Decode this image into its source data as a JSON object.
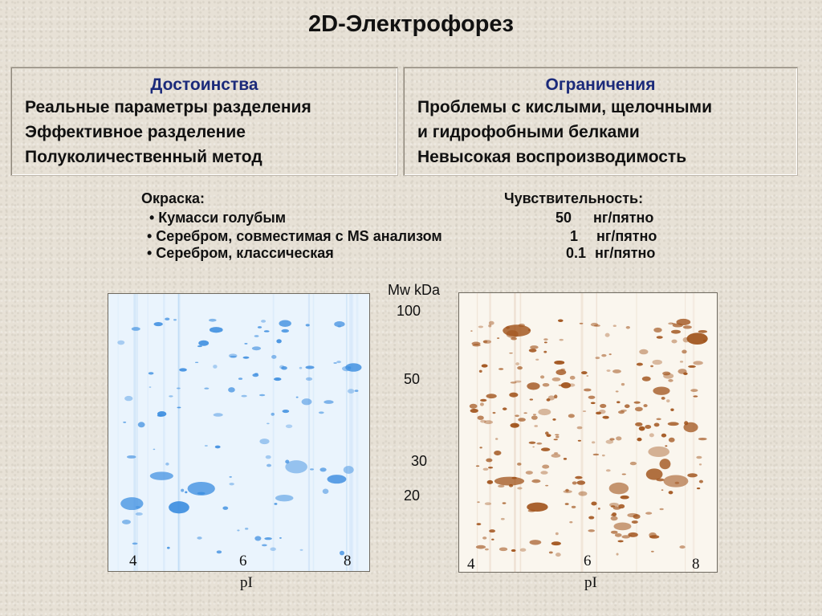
{
  "title": "2D-Электрофорез",
  "advantages": {
    "heading": "Достоинства",
    "items": [
      "Реальные параметры разделения",
      "Эффективное разделение",
      "Полуколичественный метод"
    ]
  },
  "limitations": {
    "heading": "Ограничения",
    "items": [
      "Проблемы с кислыми, щелочными",
      "и гидрофобными белками",
      "Невысокая воспроизводимость"
    ]
  },
  "staining": {
    "label": "Окраска:",
    "sensitivity_label": "Чувствительность:",
    "rows": [
      {
        "method": "•  Кумасси голубым",
        "value": "50",
        "unit": "нг/пятно"
      },
      {
        "method": "•  Серебром, совместимая с MS анализом",
        "value": "1",
        "unit": "нг/пятно"
      },
      {
        "method": "•  Серебром, классическая",
        "value": "0.1",
        "unit": "нг/пятно"
      }
    ]
  },
  "mw_axis": {
    "label": "Mw kDa",
    "ticks": [
      "100",
      "50",
      "30",
      "20"
    ]
  },
  "gel_left": {
    "pi_ticks": [
      "4",
      "6",
      "8"
    ],
    "pi_label": "pI",
    "stain_color": "#3f8fe0"
  },
  "gel_right": {
    "pi_ticks": [
      "4",
      "6",
      "8"
    ],
    "pi_label": "pI",
    "stain_color": "#a0521a"
  }
}
